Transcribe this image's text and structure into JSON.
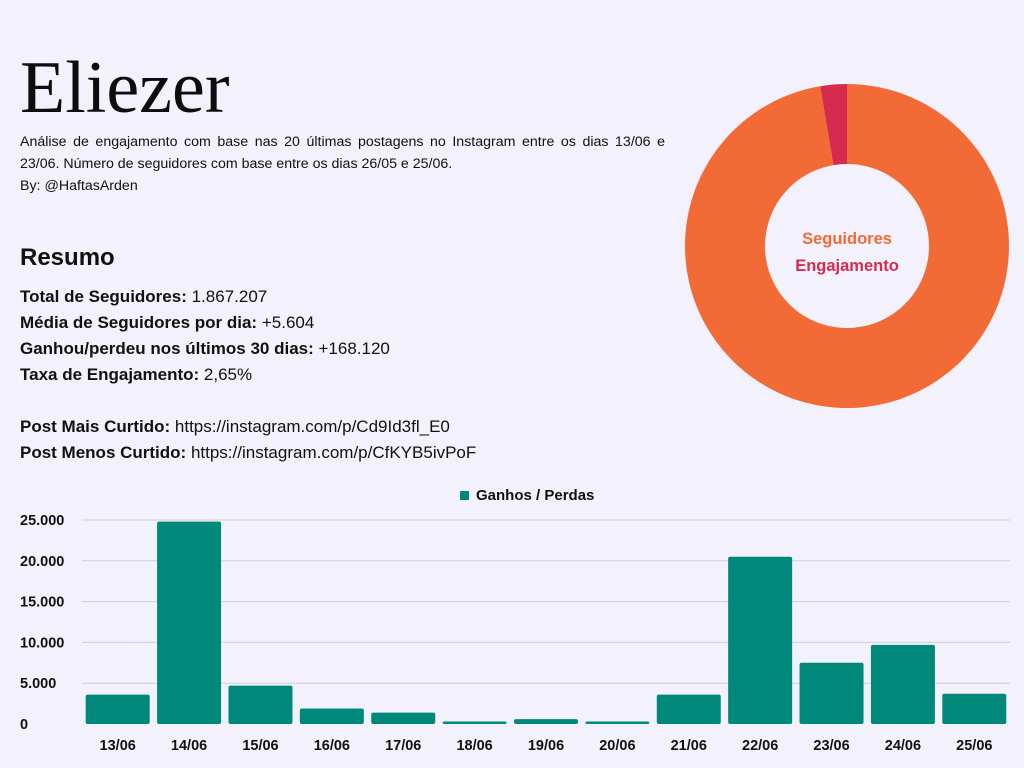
{
  "header": {
    "title": "Eliezer",
    "description": "Análise de engajamento com base nas 20 últimas postagens no Instagram entre os dias 13/06 e 23/06. Número de seguidores com base entre os dias 26/05 e 25/06.",
    "byline": "By: @HaftasArden"
  },
  "summary": {
    "title": "Resumo",
    "rows": [
      {
        "label": "Total de Seguidores:",
        "value": " 1.867.207"
      },
      {
        "label": "Média de Seguidores por dia:",
        "value": " +5.604"
      },
      {
        "label": "Ganhou/perdeu nos últimos 30 dias:",
        "value": " +168.120"
      },
      {
        "label": "Taxa de Engajamento:",
        "value": " 2,65%"
      },
      {
        "label": "Post Mais Curtido:",
        "value": " https://instagram.com/p/Cd9Id3fl_E0"
      },
      {
        "label": "Post Menos Curtido:",
        "value": " https://instagram.com/p/CfKYB5ivPoF"
      }
    ]
  },
  "chart_data": [
    {
      "type": "pie",
      "variant": "donut",
      "labels": [
        "Seguidores",
        "Engajamento"
      ],
      "values": [
        97.35,
        2.65
      ],
      "colors": [
        "#f26a35",
        "#d72a4f"
      ]
    },
    {
      "type": "bar",
      "categories": [
        "13/06",
        "14/06",
        "15/06",
        "16/06",
        "17/06",
        "18/06",
        "19/06",
        "20/06",
        "21/06",
        "22/06",
        "23/06",
        "24/06",
        "25/06"
      ],
      "series": [
        {
          "name": "Ganhos / Perdas",
          "values": [
            3600,
            24800,
            4700,
            1900,
            1400,
            300,
            600,
            300,
            3600,
            20500,
            7500,
            9700,
            3700
          ],
          "color": "#00897b"
        }
      ],
      "yticks": [
        "25.000",
        "20.000",
        "15.000",
        "10.000",
        "5.000",
        "0"
      ],
      "ylim": [
        0,
        25000
      ],
      "grid": true,
      "legend": "top-center"
    }
  ]
}
